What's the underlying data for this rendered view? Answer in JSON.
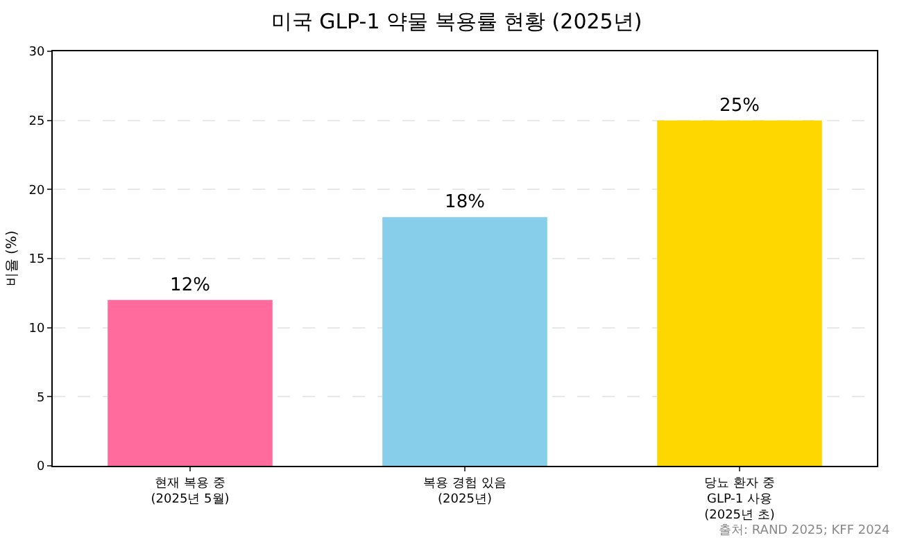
{
  "chart_data": {
    "type": "bar",
    "title": "미국 GLP-1 약물 복용률 현황 (2025년)",
    "ylabel": "비율 (%)",
    "categories": [
      "현재 복용 중\n(2025년 5월)",
      "복용 경험 있음\n(2025년)",
      "당뇨 환자 중\nGLP-1 사용\n(2025년 초)"
    ],
    "values": [
      12,
      18,
      25
    ],
    "colors": [
      "#ff6b9d",
      "#87ceeb",
      "#ffd700"
    ],
    "value_labels": [
      "12%",
      "18%",
      "25%"
    ],
    "ylim": [
      0,
      30
    ],
    "yticks": [
      0,
      5,
      10,
      15,
      20,
      25,
      30
    ],
    "grid": "y",
    "annotations": [
      "출처: RAND 2025; KFF 2024"
    ]
  }
}
